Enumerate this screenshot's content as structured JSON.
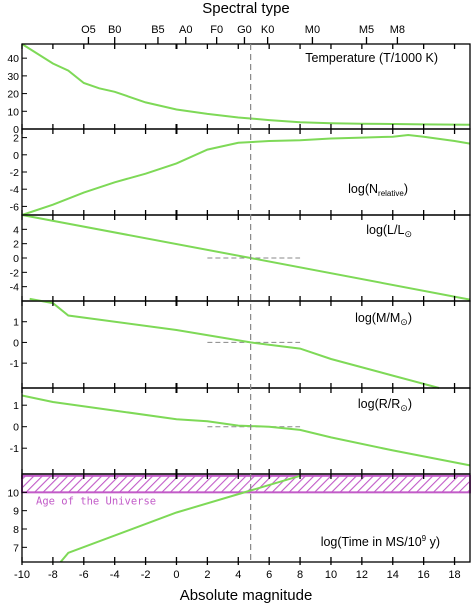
{
  "top_title": "Spectral type",
  "bottom_title": "Absolute magnitude",
  "spectral_types": [
    {
      "label": "O5",
      "mag": -5.7
    },
    {
      "label": "B0",
      "mag": -4.0
    },
    {
      "label": "B5",
      "mag": -1.2
    },
    {
      "label": "A0",
      "mag": 0.6
    },
    {
      "label": "F0",
      "mag": 2.6
    },
    {
      "label": "G0",
      "mag": 4.4
    },
    {
      "label": "K0",
      "mag": 5.9
    },
    {
      "label": "M0",
      "mag": 8.8
    },
    {
      "label": "M5",
      "mag": 12.3
    },
    {
      "label": "M8",
      "mag": 14.3
    }
  ],
  "x_ticks": [
    "-10",
    "-8",
    "-6",
    "-4",
    "-2",
    "0",
    "2",
    "4",
    "6",
    "8",
    "10",
    "12",
    "14",
    "16",
    "18"
  ],
  "colors": {
    "curve": "#7ed957",
    "band": "#c25bc8",
    "axes": "#000000",
    "guide": "#888888"
  },
  "chart_data": {
    "type": "line",
    "x": {
      "label": "Absolute magnitude",
      "lim": [
        -10,
        19
      ]
    },
    "sun_marker_mag": 4.8,
    "panels": [
      {
        "key": "temp",
        "label_main": "Temperature (T/1000 K)",
        "ylim": [
          0,
          48
        ],
        "y_ticks": [
          "0",
          "10",
          "20",
          "30",
          "40"
        ],
        "points": [
          [
            -10,
            48
          ],
          [
            -8,
            37
          ],
          [
            -7,
            33
          ],
          [
            -6,
            26
          ],
          [
            -5,
            23
          ],
          [
            -4,
            21
          ],
          [
            -2,
            15
          ],
          [
            0,
            11
          ],
          [
            2,
            8.5
          ],
          [
            4,
            6.5
          ],
          [
            5,
            5.8
          ],
          [
            6,
            5.0
          ],
          [
            8,
            3.8
          ],
          [
            10,
            3.3
          ],
          [
            12,
            3.0
          ],
          [
            14,
            2.8
          ],
          [
            16,
            2.6
          ],
          [
            19,
            2.4
          ]
        ]
      },
      {
        "key": "nrel",
        "label_main": "log(N",
        "label_sub": "relative",
        "label_end": ")",
        "ylim": [
          -7,
          3
        ],
        "y_ticks": [
          "-6",
          "-4",
          "-2",
          "0",
          "2"
        ],
        "points": [
          [
            -10,
            -7
          ],
          [
            -8,
            -5.8
          ],
          [
            -6,
            -4.4
          ],
          [
            -4,
            -3.2
          ],
          [
            -2,
            -2.2
          ],
          [
            0,
            -1.0
          ],
          [
            2,
            0.6
          ],
          [
            4,
            1.4
          ],
          [
            6,
            1.6
          ],
          [
            8,
            1.7
          ],
          [
            10,
            1.9
          ],
          [
            12,
            2.0
          ],
          [
            14,
            2.1
          ],
          [
            15,
            2.3
          ],
          [
            16,
            2.1
          ],
          [
            18,
            1.6
          ],
          [
            19,
            1.3
          ]
        ]
      },
      {
        "key": "lum",
        "label_main": "log(L/L",
        "label_sun": "⊙",
        "label_end": "",
        "ylim": [
          -6,
          6
        ],
        "y_ticks": [
          "-4",
          "-2",
          "0",
          "2",
          "4"
        ],
        "guide_y": 0,
        "guide_x": [
          2,
          8
        ],
        "points": [
          [
            -10,
            6
          ],
          [
            4.8,
            0
          ],
          [
            19,
            -5.8
          ]
        ]
      },
      {
        "key": "mass",
        "label_main": "log(M/M",
        "label_sun": "⊙",
        "label_end": ")",
        "ylim": [
          -2.2,
          2.0
        ],
        "y_ticks": [
          "-1",
          "0",
          "1"
        ],
        "guide_y": 0,
        "guide_x": [
          2,
          8
        ],
        "points": [
          [
            -9.5,
            2.1
          ],
          [
            -8.0,
            1.9
          ],
          [
            -7,
            1.3
          ],
          [
            0,
            0.6
          ],
          [
            4.8,
            0
          ],
          [
            8,
            -0.3
          ],
          [
            10,
            -0.8
          ],
          [
            14,
            -1.6
          ],
          [
            17,
            -2.2
          ]
        ]
      },
      {
        "key": "radius",
        "label_main": "log(R/R",
        "label_sun": "⊙",
        "label_end": ")",
        "ylim": [
          -2.2,
          1.8
        ],
        "y_ticks": [
          "-1",
          "0",
          "1"
        ],
        "guide_y": 0,
        "guide_x": [
          2,
          8
        ],
        "points": [
          [
            -10,
            1.45
          ],
          [
            -8,
            1.15
          ],
          [
            -4,
            0.75
          ],
          [
            0,
            0.35
          ],
          [
            2,
            0.25
          ],
          [
            4,
            0.05
          ],
          [
            6,
            0.0
          ],
          [
            8,
            -0.15
          ],
          [
            10,
            -0.5
          ],
          [
            14,
            -1.1
          ],
          [
            19,
            -1.8
          ]
        ]
      },
      {
        "key": "time",
        "label_main": "log(Time in MS/10",
        "label_sup": "9",
        "label_end": " y)",
        "ylim": [
          6.2,
          11.0
        ],
        "y_ticks": [
          "7",
          "8",
          "9",
          "10"
        ],
        "band": {
          "from": 10.0,
          "to": 10.9,
          "label": "Age of the Universe"
        },
        "points": [
          [
            -7.5,
            6.2
          ],
          [
            -7,
            6.7
          ],
          [
            0,
            8.9
          ],
          [
            4.8,
            10.1
          ],
          [
            8,
            10.9
          ]
        ]
      }
    ]
  }
}
